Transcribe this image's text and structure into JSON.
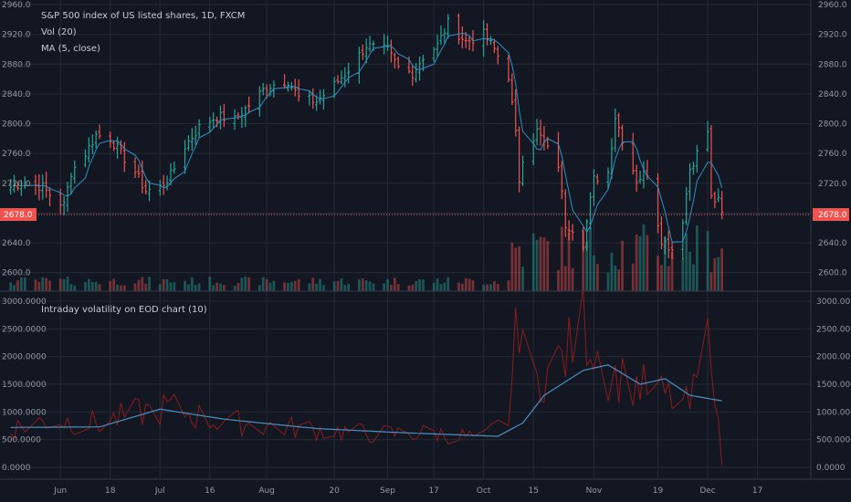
{
  "chart_data": [
    {
      "type": "bar",
      "title": "S&P 500 index of US listed shares, 1D, FXCM",
      "indicators": [
        "Vol (20)",
        "MA (5, close)"
      ],
      "y_ticks": [
        "2960.0",
        "2920.0",
        "2880.0",
        "2840.0",
        "2800.0",
        "2760.0",
        "2720.0",
        "2680.0",
        "2640.0",
        "2600.0"
      ],
      "ylim": [
        2580,
        2960
      ],
      "x_ticks": [
        {
          "date": "2018-06-04",
          "label": "Jun"
        },
        {
          "date": "2018-06-18",
          "label": "18"
        },
        {
          "date": "2018-07-02",
          "label": "Jul"
        },
        {
          "date": "2018-07-16",
          "label": "16"
        },
        {
          "date": "2018-08-01",
          "label": "Aug"
        },
        {
          "date": "2018-08-20",
          "label": "20"
        },
        {
          "date": "2018-09-04",
          "label": "Sep"
        },
        {
          "date": "2018-09-17",
          "label": "17"
        },
        {
          "date": "2018-10-01",
          "label": "Oct"
        },
        {
          "date": "2018-10-15",
          "label": "15"
        },
        {
          "date": "2018-11-01",
          "label": "Nov"
        },
        {
          "date": "2018-11-19",
          "label": "19"
        },
        {
          "date": "2018-12-03",
          "label": "Dec"
        },
        {
          "date": "2018-12-17",
          "label": "17"
        }
      ],
      "last_price": "2678.0",
      "last_price_value": 2678,
      "colors": {
        "up": "#26a69a",
        "down": "#ef5350",
        "ma": "#2f8fc4",
        "last": "#f77c80"
      },
      "ohlc_keypoints": [
        {
          "date": "2018-05-21",
          "close": 2715
        },
        {
          "date": "2018-05-25",
          "close": 2722
        },
        {
          "date": "2018-05-30",
          "close": 2715
        },
        {
          "date": "2018-06-01",
          "close": 2705
        },
        {
          "date": "2018-06-05",
          "close": 2690
        },
        {
          "date": "2018-06-07",
          "close": 2735
        },
        {
          "date": "2018-06-11",
          "close": 2760
        },
        {
          "date": "2018-06-14",
          "close": 2785
        },
        {
          "date": "2018-06-18",
          "close": 2780
        },
        {
          "date": "2018-06-21",
          "close": 2760
        },
        {
          "date": "2018-06-25",
          "close": 2735
        },
        {
          "date": "2018-06-28",
          "close": 2710
        },
        {
          "date": "2018-07-02",
          "close": 2715
        },
        {
          "date": "2018-07-05",
          "close": 2730
        },
        {
          "date": "2018-07-09",
          "close": 2770
        },
        {
          "date": "2018-07-13",
          "close": 2795
        },
        {
          "date": "2018-07-18",
          "close": 2810
        },
        {
          "date": "2018-07-23",
          "close": 2805
        },
        {
          "date": "2018-07-27",
          "close": 2825
        },
        {
          "date": "2018-08-01",
          "close": 2850
        },
        {
          "date": "2018-08-07",
          "close": 2858
        },
        {
          "date": "2018-08-10",
          "close": 2835
        },
        {
          "date": "2018-08-15",
          "close": 2830
        },
        {
          "date": "2018-08-20",
          "close": 2852
        },
        {
          "date": "2018-08-24",
          "close": 2873
        },
        {
          "date": "2018-08-29",
          "close": 2905
        },
        {
          "date": "2018-09-04",
          "close": 2898
        },
        {
          "date": "2018-09-07",
          "close": 2875
        },
        {
          "date": "2018-09-11",
          "close": 2868
        },
        {
          "date": "2018-09-14",
          "close": 2890
        },
        {
          "date": "2018-09-18",
          "close": 2905
        },
        {
          "date": "2018-09-21",
          "close": 2935
        },
        {
          "date": "2018-09-26",
          "close": 2910
        },
        {
          "date": "2018-10-01",
          "close": 2920
        },
        {
          "date": "2018-10-04",
          "close": 2900
        },
        {
          "date": "2018-10-08",
          "close": 2865
        },
        {
          "date": "2018-10-10",
          "close": 2785
        },
        {
          "date": "2018-10-11",
          "close": 2725
        },
        {
          "date": "2018-10-12",
          "close": 2755
        },
        {
          "date": "2018-10-16",
          "close": 2790
        },
        {
          "date": "2018-10-19",
          "close": 2765
        },
        {
          "date": "2018-10-22",
          "close": 2745
        },
        {
          "date": "2018-10-24",
          "close": 2665
        },
        {
          "date": "2018-10-26",
          "close": 2660
        },
        {
          "date": "2018-10-29",
          "close": 2640
        },
        {
          "date": "2018-11-01",
          "close": 2725
        },
        {
          "date": "2018-11-05",
          "close": 2735
        },
        {
          "date": "2018-11-07",
          "close": 2810
        },
        {
          "date": "2018-11-09",
          "close": 2780
        },
        {
          "date": "2018-11-13",
          "close": 2725
        },
        {
          "date": "2018-11-16",
          "close": 2735
        },
        {
          "date": "2018-11-20",
          "close": 2645
        },
        {
          "date": "2018-11-23",
          "close": 2632
        },
        {
          "date": "2018-11-26",
          "close": 2672
        },
        {
          "date": "2018-11-28",
          "close": 2740
        },
        {
          "date": "2018-11-30",
          "close": 2760
        },
        {
          "date": "2018-12-03",
          "close": 2790
        },
        {
          "date": "2018-12-04",
          "close": 2700
        },
        {
          "date": "2018-12-06",
          "close": 2695
        },
        {
          "date": "2018-12-07",
          "close": 2678
        }
      ]
    },
    {
      "type": "line",
      "title": "Intraday volatility on EOD chart (10)",
      "y_ticks": [
        "3000.0000",
        "2500.0000",
        "2000.0000",
        "1500.0000",
        "1000.0000",
        "500.0000",
        "0.0000"
      ],
      "ylim": [
        0,
        3000
      ],
      "colors": {
        "raw": "#8b1c1c",
        "ma": "#4a90c2"
      },
      "volatility_keypoints": [
        {
          "date": "2018-05-21",
          "value": 700
        },
        {
          "date": "2018-06-01",
          "value": 850
        },
        {
          "date": "2018-06-15",
          "value": 800
        },
        {
          "date": "2018-06-27",
          "value": 1000
        },
        {
          "date": "2018-07-05",
          "value": 1080
        },
        {
          "date": "2018-07-16",
          "value": 850
        },
        {
          "date": "2018-08-01",
          "value": 750
        },
        {
          "date": "2018-08-15",
          "value": 680
        },
        {
          "date": "2018-09-01",
          "value": 600
        },
        {
          "date": "2018-09-17",
          "value": 620
        },
        {
          "date": "2018-10-01",
          "value": 520
        },
        {
          "date": "2018-10-08",
          "value": 900
        },
        {
          "date": "2018-10-11",
          "value": 2900
        },
        {
          "date": "2018-10-15",
          "value": 1500
        },
        {
          "date": "2018-10-24",
          "value": 2000
        },
        {
          "date": "2018-10-29",
          "value": 2600
        },
        {
          "date": "2018-11-05",
          "value": 1700
        },
        {
          "date": "2018-11-13",
          "value": 1500
        },
        {
          "date": "2018-11-21",
          "value": 1300
        },
        {
          "date": "2018-11-28",
          "value": 1100
        },
        {
          "date": "2018-12-04",
          "value": 2450
        },
        {
          "date": "2018-12-06",
          "value": 700
        },
        {
          "date": "2018-12-07",
          "value": 50
        }
      ],
      "vol_ma_keypoints": [
        {
          "date": "2018-05-21",
          "value": 720
        },
        {
          "date": "2018-06-15",
          "value": 730
        },
        {
          "date": "2018-07-02",
          "value": 1050
        },
        {
          "date": "2018-07-20",
          "value": 870
        },
        {
          "date": "2018-08-15",
          "value": 700
        },
        {
          "date": "2018-09-10",
          "value": 620
        },
        {
          "date": "2018-10-05",
          "value": 560
        },
        {
          "date": "2018-10-12",
          "value": 800
        },
        {
          "date": "2018-10-18",
          "value": 1300
        },
        {
          "date": "2018-10-29",
          "value": 1750
        },
        {
          "date": "2018-11-05",
          "value": 1850
        },
        {
          "date": "2018-11-14",
          "value": 1500
        },
        {
          "date": "2018-11-21",
          "value": 1600
        },
        {
          "date": "2018-11-28",
          "value": 1300
        },
        {
          "date": "2018-12-07",
          "value": 1200
        }
      ]
    }
  ]
}
